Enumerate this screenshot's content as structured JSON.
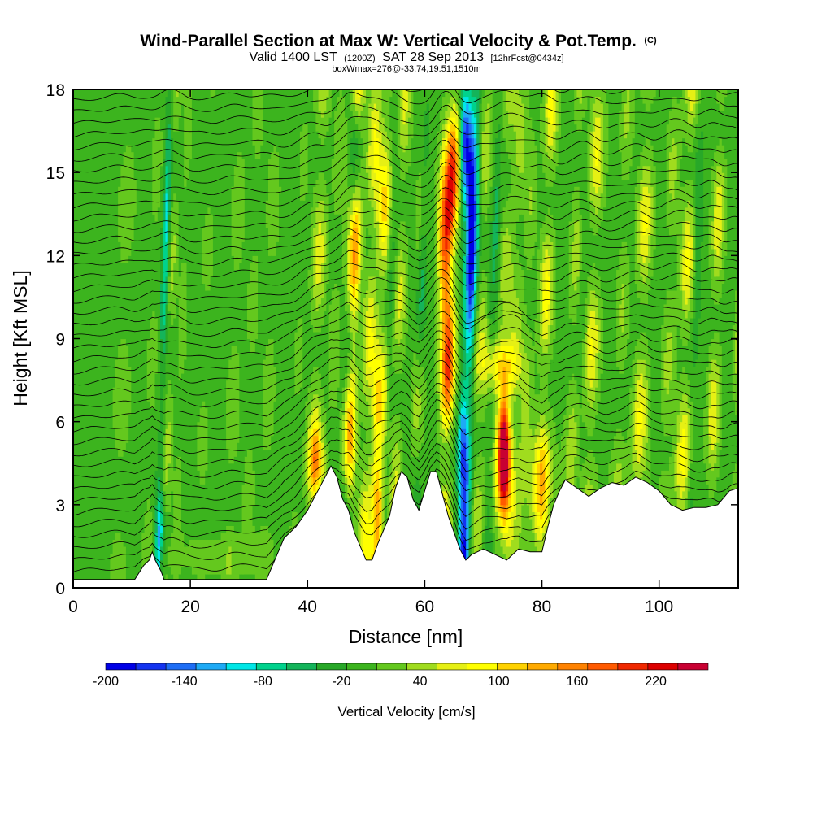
{
  "chart_data": {
    "type": "heatmap",
    "title": "Wind-Parallel Section at Max W: Vertical Velocity & Pot.Temp.",
    "title_mark": "(C)",
    "subtitle": {
      "valid_prefix": "Valid 1400 LST",
      "utc": "(1200Z)",
      "date": "SAT 28 Sep 2013",
      "forecast": "[12hrFcst@0434z]"
    },
    "note": "boxWmax=276@-33.74,19.51,1510m",
    "xlabel": "Distance [nm]",
    "ylabel": "Height [Kft MSL]",
    "xlim": [
      0,
      113.5
    ],
    "ylim": [
      0,
      18
    ],
    "x_ticks": [
      0,
      20,
      40,
      60,
      80,
      100
    ],
    "y_ticks": [
      0,
      3,
      6,
      9,
      12,
      15,
      18
    ],
    "colorbar": {
      "label": "Vertical Velocity [cm/s]",
      "range": [
        -200,
        260
      ],
      "tick_labels": [
        "-200",
        "-140",
        "-80",
        "-20",
        "40",
        "100",
        "160",
        "220"
      ],
      "tick_values": [
        -200,
        -140,
        -80,
        -20,
        40,
        100,
        160,
        220
      ],
      "colors": [
        "#0000e6",
        "#1434f0",
        "#1e6ef5",
        "#1eaaf5",
        "#00e6e6",
        "#00d28c",
        "#14b45a",
        "#28a828",
        "#3cb41e",
        "#64c81e",
        "#a0dc1e",
        "#e6f014",
        "#ffff00",
        "#ffd200",
        "#ffaa00",
        "#ff8200",
        "#ff5a00",
        "#f02800",
        "#dc0000",
        "#c80032"
      ]
    },
    "background_value": -5,
    "updraft_bands": [
      {
        "x": 3.5,
        "half_width": 1.2,
        "w": 12
      },
      {
        "x": 8,
        "half_width": 1.5,
        "w": 30
      },
      {
        "x": 13,
        "half_width": 1.0,
        "w": 24
      },
      {
        "x": 16,
        "half_width": 0.8,
        "w": 45
      },
      {
        "x": 18,
        "half_width": 0.8,
        "w": 30
      },
      {
        "x": 22,
        "half_width": 1.5,
        "w": 18
      },
      {
        "x": 27,
        "half_width": 1.2,
        "w": 30
      },
      {
        "x": 30,
        "half_width": 1.2,
        "w": 22
      },
      {
        "x": 33,
        "half_width": 1.2,
        "w": 28
      },
      {
        "x": 38,
        "half_width": 1.2,
        "w": 18
      },
      {
        "x": 41,
        "half_width": 1.2,
        "w": 75
      },
      {
        "x": 44,
        "half_width": 1.0,
        "w": 35
      },
      {
        "x": 47,
        "half_width": 1.1,
        "w": 150
      },
      {
        "x": 50,
        "half_width": 1.3,
        "w": 85
      },
      {
        "x": 52,
        "half_width": 1.3,
        "w": 110
      },
      {
        "x": 55,
        "half_width": 1.1,
        "w": 65
      },
      {
        "x": 58.5,
        "half_width": 1.1,
        "w": 55
      },
      {
        "x": 63.5,
        "half_width": 1.2,
        "w": 200
      },
      {
        "x": 69,
        "half_width": 1.2,
        "w": 60
      },
      {
        "x": 73,
        "half_width": 1.3,
        "w": 55
      },
      {
        "x": 75,
        "half_width": 1.2,
        "w": 45
      },
      {
        "x": 77,
        "half_width": 1.0,
        "w": 35
      },
      {
        "x": 80,
        "half_width": 1.2,
        "w": 95
      },
      {
        "x": 85,
        "half_width": 1.2,
        "w": 55
      },
      {
        "x": 88,
        "half_width": 1.3,
        "w": 85
      },
      {
        "x": 93,
        "half_width": 1.1,
        "w": 40
      },
      {
        "x": 96.5,
        "half_width": 1.3,
        "w": 85
      },
      {
        "x": 101,
        "half_width": 1.1,
        "w": 45
      },
      {
        "x": 104,
        "half_width": 1.3,
        "w": 90
      },
      {
        "x": 109,
        "half_width": 1.1,
        "w": 80
      },
      {
        "x": 113,
        "half_width": 0.8,
        "w": 50
      }
    ],
    "downdraft_bands": [
      {
        "x": 14.8,
        "half_width": 0.6,
        "w": -95
      },
      {
        "x": 46.5,
        "half_width": 0.9,
        "w": -90
      },
      {
        "x": 53.5,
        "half_width": 0.7,
        "w": -35
      },
      {
        "x": 58.7,
        "half_width": 0.8,
        "w": -60
      },
      {
        "x": 67,
        "half_width": 1.0,
        "w": -200
      },
      {
        "x": 71,
        "half_width": 0.8,
        "w": -45
      },
      {
        "x": 86,
        "half_width": 0.8,
        "w": -30
      },
      {
        "x": 105.5,
        "half_width": 0.8,
        "w": -40
      }
    ],
    "cells": [
      {
        "x": 73.5,
        "y": 4.8,
        "sx": 1.0,
        "sy": 2.0,
        "w": 260
      },
      {
        "x": 73,
        "y": 8.0,
        "sx": 3.0,
        "sy": 1.0,
        "w": 100
      },
      {
        "x": 75,
        "y": 4.0,
        "sx": 4.5,
        "sy": 2.2,
        "w": 30
      },
      {
        "x": 80,
        "y": 4.0,
        "sx": 2.5,
        "sy": 2.0,
        "w": 40
      },
      {
        "x": 41.5,
        "y": 4.5,
        "sx": 1.3,
        "sy": 1.2,
        "w": 110
      },
      {
        "x": 52,
        "y": 3.0,
        "sx": 1.0,
        "sy": 1.8,
        "w": 120
      },
      {
        "x": 63.5,
        "y": 12.5,
        "sx": 1.2,
        "sy": 3.0,
        "w": 180
      },
      {
        "x": 47.5,
        "y": 11.5,
        "sx": 1.0,
        "sy": 3.5,
        "w": 90
      },
      {
        "x": 67,
        "y": 16.0,
        "sx": 1.0,
        "sy": 2.0,
        "w": -170
      },
      {
        "x": 66.5,
        "y": 5.0,
        "sx": 1.0,
        "sy": 2.0,
        "w": -120
      },
      {
        "x": 15,
        "y": 2.0,
        "sx": 0.7,
        "sy": 1.0,
        "w": -50
      },
      {
        "x": 25,
        "y": 1.2,
        "sx": 10,
        "sy": 0.8,
        "w": 20
      },
      {
        "x": 95,
        "y": 4.0,
        "sx": 8,
        "sy": 1.5,
        "w": 10
      }
    ],
    "terrain_kft": [
      [
        0,
        0.3
      ],
      [
        10.5,
        0.3
      ],
      [
        12,
        0.8
      ],
      [
        13,
        1.0
      ],
      [
        13.5,
        1.3
      ],
      [
        14,
        1.0
      ],
      [
        15,
        0.6
      ],
      [
        15.5,
        0.3
      ],
      [
        33,
        0.3
      ],
      [
        34,
        0.8
      ],
      [
        36,
        1.8
      ],
      [
        38,
        2.2
      ],
      [
        40,
        2.8
      ],
      [
        42,
        3.6
      ],
      [
        44,
        4.4
      ],
      [
        45,
        4.0
      ],
      [
        46,
        3.2
      ],
      [
        47,
        2.8
      ],
      [
        48,
        2.0
      ],
      [
        49,
        1.5
      ],
      [
        50,
        1.0
      ],
      [
        51,
        1.0
      ],
      [
        52,
        1.6
      ],
      [
        54,
        2.6
      ],
      [
        55,
        3.6
      ],
      [
        56,
        4.2
      ],
      [
        57,
        4.0
      ],
      [
        58,
        3.2
      ],
      [
        59,
        2.8
      ],
      [
        60,
        3.5
      ],
      [
        61,
        4.2
      ],
      [
        62,
        4.2
      ],
      [
        63,
        3.4
      ],
      [
        64,
        2.6
      ],
      [
        65,
        2.0
      ],
      [
        66,
        1.4
      ],
      [
        67,
        1.0
      ],
      [
        68,
        1.2
      ],
      [
        70,
        1.4
      ],
      [
        72,
        1.2
      ],
      [
        74,
        1.0
      ],
      [
        76,
        1.4
      ],
      [
        78,
        1.3
      ],
      [
        80,
        1.3
      ],
      [
        81,
        2.2
      ],
      [
        82,
        3.0
      ],
      [
        83,
        3.5
      ],
      [
        84,
        3.9
      ],
      [
        86,
        3.6
      ],
      [
        88,
        3.3
      ],
      [
        90,
        3.6
      ],
      [
        92,
        3.8
      ],
      [
        94,
        3.7
      ],
      [
        96,
        4.0
      ],
      [
        98,
        3.8
      ],
      [
        100,
        3.5
      ],
      [
        102,
        3.0
      ],
      [
        104,
        2.8
      ],
      [
        106,
        2.9
      ],
      [
        108,
        2.9
      ],
      [
        110,
        3.0
      ],
      [
        112,
        3.5
      ],
      [
        113.5,
        3.6
      ]
    ]
  }
}
